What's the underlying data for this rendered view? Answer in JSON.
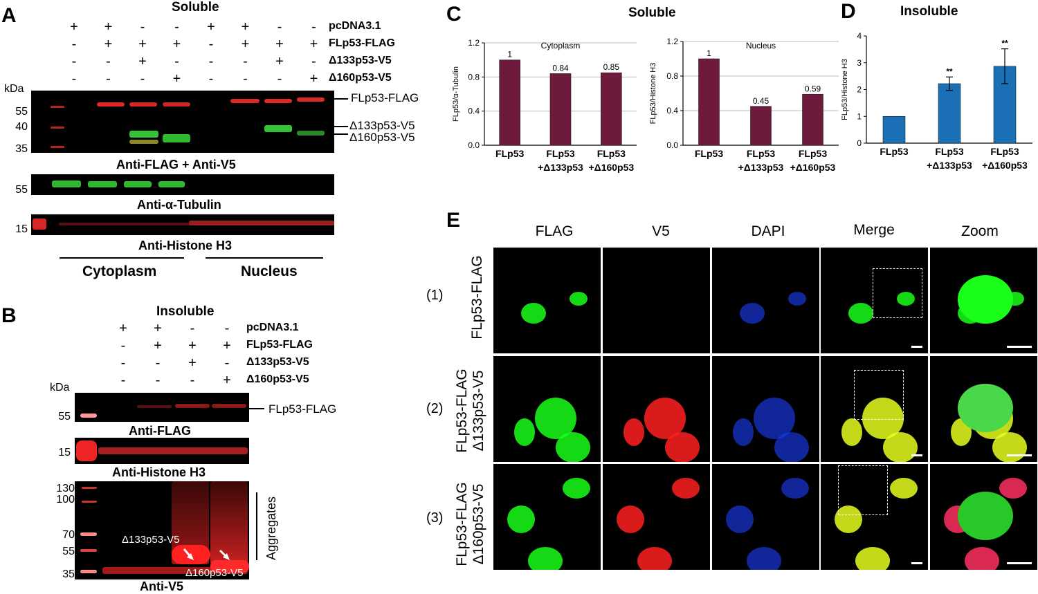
{
  "panelA": {
    "letter": "A",
    "title": "Soluble",
    "condition_rows": [
      {
        "label": "pcDNA3.1",
        "signs": [
          "+",
          "+",
          "-",
          "-",
          "+",
          "+",
          "-",
          "-"
        ]
      },
      {
        "label": "FLp53-FLAG",
        "signs": [
          "-",
          "+",
          "+",
          "+",
          "-",
          "+",
          "+",
          "+"
        ]
      },
      {
        "label": "Δ133p53-V5",
        "signs": [
          "-",
          "-",
          "+",
          "-",
          "-",
          "-",
          "+",
          "-"
        ]
      },
      {
        "label": "Δ160p53-V5",
        "signs": [
          "-",
          "-",
          "-",
          "+",
          "-",
          "-",
          "-",
          "+"
        ]
      }
    ],
    "kda_label": "kDa",
    "blot1": {
      "markers": [
        "55",
        "40",
        "35"
      ],
      "caption": "Anti-FLAG + Anti-V5",
      "band_labels": [
        "FLp53-FLAG",
        "Δ133p53-V5",
        "Δ160p53-V5"
      ]
    },
    "blot2": {
      "markers": [
        "55"
      ],
      "caption": "Anti-α-Tubulin"
    },
    "blot3": {
      "markers": [
        "15"
      ],
      "caption": "Anti-Histone H3"
    },
    "fractions": [
      "Cytoplasm",
      "Nucleus"
    ]
  },
  "panelB": {
    "letter": "B",
    "title": "Insoluble",
    "condition_rows": [
      {
        "label": "pcDNA3.1",
        "signs": [
          "+",
          "+",
          "-",
          "-"
        ]
      },
      {
        "label": "FLp53-FLAG",
        "signs": [
          "-",
          "+",
          "+",
          "+"
        ]
      },
      {
        "label": "Δ133p53-V5",
        "signs": [
          "-",
          "-",
          "+",
          "-"
        ]
      },
      {
        "label": "Δ160p53-V5",
        "signs": [
          "-",
          "-",
          "-",
          "+"
        ]
      }
    ],
    "kda_label": "kDa",
    "blot1": {
      "markers": [
        "55"
      ],
      "caption": "Anti-FLAG",
      "band_label": "FLp53-FLAG"
    },
    "blot2": {
      "markers": [
        "15"
      ],
      "caption": "Anti-Histone H3"
    },
    "blot3": {
      "markers": [
        "130",
        "100",
        "70",
        "55",
        "35"
      ],
      "caption": "Anti-V5",
      "inner_labels": [
        "Δ133p53-V5",
        "Δ160p53-V5"
      ],
      "bracket_label": "Aggregates"
    }
  },
  "panelC": {
    "letter": "C",
    "title": "Soluble",
    "chart_data": [
      {
        "type": "bar",
        "title": "Cytoplasm",
        "ylabel": "FLp53/α-Tubulin",
        "categories": [
          [
            "FLp53"
          ],
          [
            "FLp53",
            "+Δ133p53"
          ],
          [
            "FLp53",
            "+Δ160p53"
          ]
        ],
        "values": [
          1,
          0.84,
          0.85
        ],
        "data_labels": [
          "1",
          "0.84",
          "0.85"
        ],
        "ylim": [
          0,
          1.2
        ],
        "yticks": [
          "0.0",
          "0.4",
          "0.8",
          "1.2"
        ],
        "grid": true,
        "color": "#6d1a3d"
      },
      {
        "type": "bar",
        "title": "Nucleus",
        "ylabel": "FLp53/Histone H3",
        "categories": [
          [
            "FLp53"
          ],
          [
            "FLp53",
            "+Δ133p53"
          ],
          [
            "FLp53",
            "+Δ160p53"
          ]
        ],
        "values": [
          1,
          0.45,
          0.59
        ],
        "data_labels": [
          "1",
          "0.45",
          "0.59"
        ],
        "ylim": [
          0,
          1.2
        ],
        "yticks": [
          "0.0",
          "0.4",
          "0.8",
          "1.2"
        ],
        "grid": true,
        "color": "#6d1a3d"
      }
    ]
  },
  "panelD": {
    "letter": "D",
    "title": "Insoluble",
    "chart_data": {
      "type": "bar",
      "title": "",
      "ylabel": "FLp53/Histone H3",
      "categories": [
        [
          "FLp53"
        ],
        [
          "FLp53",
          "+Δ133p53"
        ],
        [
          "FLp53",
          "+Δ160p53"
        ]
      ],
      "values": [
        1,
        2.22,
        2.87
      ],
      "errors": [
        0,
        0.25,
        0.65
      ],
      "significance": [
        "",
        "**",
        "**"
      ],
      "ylim": [
        0,
        4
      ],
      "yticks": [
        "0",
        "1",
        "2",
        "3",
        "4"
      ],
      "grid": false,
      "color": "#1a6fb5"
    }
  },
  "panelE": {
    "letter": "E",
    "columns": [
      "FLAG",
      "V5",
      "DAPI",
      "Merge",
      "Zoom"
    ],
    "rows": [
      {
        "index": "(1)",
        "label": "FLp53-FLAG"
      },
      {
        "index": "(2)",
        "label": "FLp53-FLAG Δ133p53-V5"
      },
      {
        "index": "(3)",
        "label": "FLp53-FLAG Δ160p53-V5"
      }
    ]
  }
}
